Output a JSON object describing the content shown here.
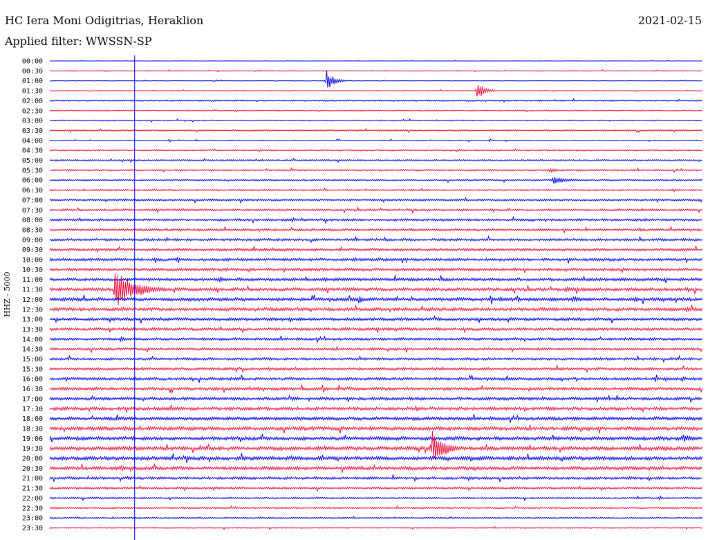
{
  "header": {
    "station": "HC Iera Moni Odigitrias, Heraklion",
    "filter_label": "Applied filter: WWSSN-SP",
    "date": "2021-02-15",
    "channel_label": "HHZ - 5000"
  },
  "colors": {
    "blue": "#0000e6",
    "red": "#e8103a",
    "marker": "#0000e6"
  },
  "chart_data": {
    "type": "line",
    "title": "HC Iera Moni Odigitrias, Heraklion",
    "subtitle": "Applied filter: WWSSN-SP",
    "ylabel": "HHZ - 5000",
    "row_labels": [
      "00:00",
      "00:30",
      "01:00",
      "01:30",
      "02:00",
      "02:30",
      "03:00",
      "03:30",
      "04:00",
      "04:30",
      "05:00",
      "05:30",
      "06:00",
      "06:30",
      "07:00",
      "07:30",
      "08:00",
      "08:30",
      "09:00",
      "09:30",
      "10:00",
      "10:30",
      "11:00",
      "11:30",
      "12:00",
      "12:30",
      "13:00",
      "13:30",
      "14:00",
      "14:30",
      "15:00",
      "15:30",
      "16:00",
      "16:30",
      "17:00",
      "17:30",
      "18:00",
      "18:30",
      "19:00",
      "19:30",
      "20:00",
      "20:30",
      "21:00",
      "21:30",
      "22:00",
      "22:30",
      "23:00",
      "23:30"
    ],
    "row_colors": [
      "blue",
      "red"
    ],
    "noise_levels": [
      0.2,
      0.4,
      0.3,
      0.4,
      0.7,
      0.6,
      0.6,
      0.7,
      0.5,
      0.7,
      0.8,
      0.9,
      0.8,
      0.9,
      1.0,
      1.1,
      1.2,
      1.2,
      1.3,
      1.4,
      1.5,
      1.5,
      1.6,
      1.7,
      1.8,
      1.7,
      1.6,
      1.5,
      1.4,
      1.3,
      1.3,
      1.4,
      1.5,
      1.6,
      1.6,
      1.7,
      1.8,
      1.9,
      1.9,
      2.0,
      2.0,
      1.8,
      1.4,
      1.1,
      0.9,
      0.8,
      0.7,
      0.6
    ],
    "events": [
      {
        "row": 2,
        "time": 0.424,
        "amp": 16,
        "duration": 0.03
      },
      {
        "row": 3,
        "time": 0.654,
        "amp": 15,
        "duration": 0.03
      },
      {
        "row": 23,
        "time": 0.1,
        "amp": 28,
        "duration": 0.09
      },
      {
        "row": 24,
        "time": 0.472,
        "amp": 10,
        "duration": 0.02
      },
      {
        "row": 39,
        "time": 0.585,
        "amp": 30,
        "duration": 0.05
      },
      {
        "row": 38,
        "time": 0.97,
        "amp": 7,
        "duration": 0.04
      },
      {
        "row": 12,
        "time": 0.77,
        "amp": 6,
        "duration": 0.06
      },
      {
        "row": 11,
        "time": 0.765,
        "amp": 5,
        "duration": 0.03
      },
      {
        "row": 23,
        "time": 0.79,
        "amp": 6,
        "duration": 0.03
      },
      {
        "row": 24,
        "time": 0.8,
        "amp": 6,
        "duration": 0.03
      },
      {
        "row": 24,
        "time": 0.895,
        "amp": 5,
        "duration": 0.03
      },
      {
        "row": 25,
        "time": 0.975,
        "amp": 6,
        "duration": 0.02
      },
      {
        "row": 28,
        "time": 0.107,
        "amp": 5,
        "duration": 0.02
      },
      {
        "row": 35,
        "time": 0.56,
        "amp": 5,
        "duration": 0.02
      }
    ],
    "marker_time": 0.13
  }
}
